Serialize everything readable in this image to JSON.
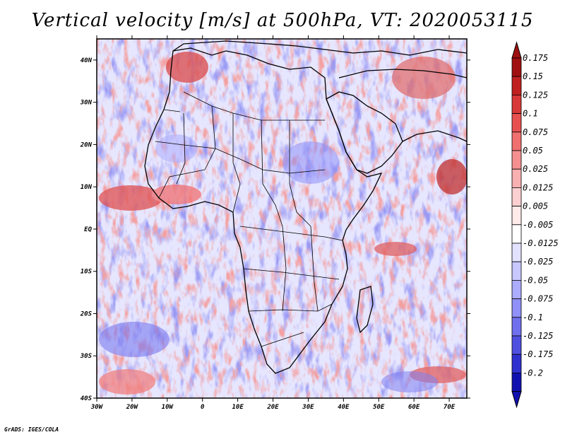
{
  "title": "Vertical velocity [m/s] at 500hPa, VT: 2020053115",
  "footer": "GrADS: IGES/COLA",
  "map": {
    "lon_range": [
      -30,
      75
    ],
    "lat_range": [
      -40,
      45
    ],
    "lat_ticks": [
      {
        "value": 40,
        "label": "40N"
      },
      {
        "value": 30,
        "label": "30N"
      },
      {
        "value": 20,
        "label": "20N"
      },
      {
        "value": 10,
        "label": "10N"
      },
      {
        "value": 0,
        "label": "EQ"
      },
      {
        "value": -10,
        "label": "10S"
      },
      {
        "value": -20,
        "label": "20S"
      },
      {
        "value": -30,
        "label": "30S"
      },
      {
        "value": -40,
        "label": "40S"
      }
    ],
    "lon_ticks": [
      {
        "value": -30,
        "label": "30W"
      },
      {
        "value": -20,
        "label": "20W"
      },
      {
        "value": -10,
        "label": "10W"
      },
      {
        "value": 0,
        "label": "0"
      },
      {
        "value": 10,
        "label": "10E"
      },
      {
        "value": 20,
        "label": "20E"
      },
      {
        "value": 30,
        "label": "30E"
      },
      {
        "value": 40,
        "label": "40E"
      },
      {
        "value": 50,
        "label": "50E"
      },
      {
        "value": 60,
        "label": "60E"
      },
      {
        "value": 70,
        "label": "70E"
      }
    ]
  },
  "colorbar": {
    "levels": [
      {
        "label": "0.175",
        "color": "#a01010"
      },
      {
        "label": "0.15",
        "color": "#c02020"
      },
      {
        "label": "0.125",
        "color": "#d83838"
      },
      {
        "label": "0.1",
        "color": "#e85050"
      },
      {
        "label": "0.075",
        "color": "#f07070"
      },
      {
        "label": "0.05",
        "color": "#f49090"
      },
      {
        "label": "0.025",
        "color": "#f8b0b0"
      },
      {
        "label": "0.0125",
        "color": "#fcd0d0"
      },
      {
        "label": "0.005",
        "color": "#ffeaea"
      },
      {
        "label": "-0.005",
        "color": "#ffffff"
      },
      {
        "label": "-0.0125",
        "color": "#e2e2ff"
      },
      {
        "label": "-0.025",
        "color": "#c8c8ff"
      },
      {
        "label": "-0.05",
        "color": "#acacff"
      },
      {
        "label": "-0.075",
        "color": "#9090f8"
      },
      {
        "label": "-0.1",
        "color": "#7070ee"
      },
      {
        "label": "-0.125",
        "color": "#5050e0"
      },
      {
        "label": "-0.175",
        "color": "#3030d0"
      },
      {
        "label": "-0.2",
        "color": "#1010b0"
      }
    ],
    "top_color": "#a01010",
    "bottom_color": "#1010b0"
  }
}
